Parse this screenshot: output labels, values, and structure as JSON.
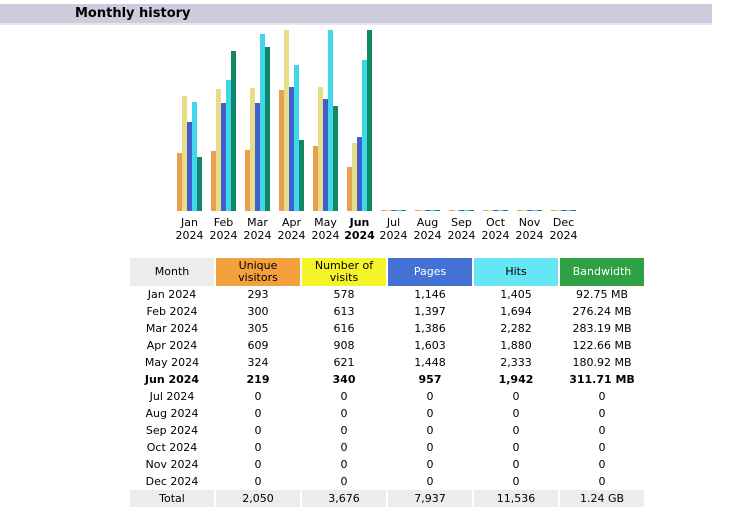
{
  "section": {
    "title": "Monthly history"
  },
  "colors": {
    "unique": "#e8a050",
    "visits": "#e8dc88",
    "pages": "#4060d0",
    "hits": "#40d8e8",
    "bandwidth": "#108868"
  },
  "chart_data": {
    "type": "bar",
    "categories": [
      "Jan 2024",
      "Feb 2024",
      "Mar 2024",
      "Apr 2024",
      "May 2024",
      "Jun 2024",
      "Jul 2024",
      "Aug 2024",
      "Sep 2024",
      "Oct 2024",
      "Nov 2024",
      "Dec 2024"
    ],
    "month_labels": [
      {
        "m": "Jan",
        "y": "2024"
      },
      {
        "m": "Feb",
        "y": "2024"
      },
      {
        "m": "Mar",
        "y": "2024"
      },
      {
        "m": "Apr",
        "y": "2024"
      },
      {
        "m": "May",
        "y": "2024"
      },
      {
        "m": "Jun",
        "y": "2024"
      },
      {
        "m": "Jul",
        "y": "2024"
      },
      {
        "m": "Aug",
        "y": "2024"
      },
      {
        "m": "Sep",
        "y": "2024"
      },
      {
        "m": "Oct",
        "y": "2024"
      },
      {
        "m": "Nov",
        "y": "2024"
      },
      {
        "m": "Dec",
        "y": "2024"
      }
    ],
    "current_index": 5,
    "series": [
      {
        "name": "Unique visitors",
        "values": [
          293,
          300,
          305,
          609,
          324,
          219,
          0,
          0,
          0,
          0,
          0,
          0
        ]
      },
      {
        "name": "Number of visits",
        "values": [
          578,
          613,
          616,
          908,
          621,
          340,
          0,
          0,
          0,
          0,
          0,
          0
        ]
      },
      {
        "name": "Pages",
        "values": [
          1146,
          1397,
          1386,
          1603,
          1448,
          957,
          0,
          0,
          0,
          0,
          0,
          0
        ]
      },
      {
        "name": "Hits",
        "values": [
          1405,
          1694,
          2282,
          1880,
          2333,
          1942,
          0,
          0,
          0,
          0,
          0,
          0
        ]
      },
      {
        "name": "Bandwidth",
        "values": [
          92.75,
          276.24,
          283.19,
          122.66,
          180.92,
          311.71,
          0,
          0,
          0,
          0,
          0,
          0
        ],
        "unit": "MB"
      }
    ]
  },
  "table": {
    "headers": {
      "month": "Month",
      "unique": "Unique visitors",
      "visits": "Number of visits",
      "pages": "Pages",
      "hits": "Hits",
      "bandwidth": "Bandwidth"
    },
    "rows": [
      {
        "month": "Jan 2024",
        "unique": "293",
        "visits": "578",
        "pages": "1,146",
        "hits": "1,405",
        "bandwidth": "92.75 MB"
      },
      {
        "month": "Feb 2024",
        "unique": "300",
        "visits": "613",
        "pages": "1,397",
        "hits": "1,694",
        "bandwidth": "276.24 MB"
      },
      {
        "month": "Mar 2024",
        "unique": "305",
        "visits": "616",
        "pages": "1,386",
        "hits": "2,282",
        "bandwidth": "283.19 MB"
      },
      {
        "month": "Apr 2024",
        "unique": "609",
        "visits": "908",
        "pages": "1,603",
        "hits": "1,880",
        "bandwidth": "122.66 MB"
      },
      {
        "month": "May 2024",
        "unique": "324",
        "visits": "621",
        "pages": "1,448",
        "hits": "2,333",
        "bandwidth": "180.92 MB"
      },
      {
        "month": "Jun 2024",
        "unique": "219",
        "visits": "340",
        "pages": "957",
        "hits": "1,942",
        "bandwidth": "311.71 MB"
      },
      {
        "month": "Jul 2024",
        "unique": "0",
        "visits": "0",
        "pages": "0",
        "hits": "0",
        "bandwidth": "0"
      },
      {
        "month": "Aug 2024",
        "unique": "0",
        "visits": "0",
        "pages": "0",
        "hits": "0",
        "bandwidth": "0"
      },
      {
        "month": "Sep 2024",
        "unique": "0",
        "visits": "0",
        "pages": "0",
        "hits": "0",
        "bandwidth": "0"
      },
      {
        "month": "Oct 2024",
        "unique": "0",
        "visits": "0",
        "pages": "0",
        "hits": "0",
        "bandwidth": "0"
      },
      {
        "month": "Nov 2024",
        "unique": "0",
        "visits": "0",
        "pages": "0",
        "hits": "0",
        "bandwidth": "0"
      },
      {
        "month": "Dec 2024",
        "unique": "0",
        "visits": "0",
        "pages": "0",
        "hits": "0",
        "bandwidth": "0"
      }
    ],
    "total": {
      "label": "Total",
      "unique": "2,050",
      "visits": "3,676",
      "pages": "7,937",
      "hits": "11,536",
      "bandwidth": "1.24 GB"
    }
  }
}
